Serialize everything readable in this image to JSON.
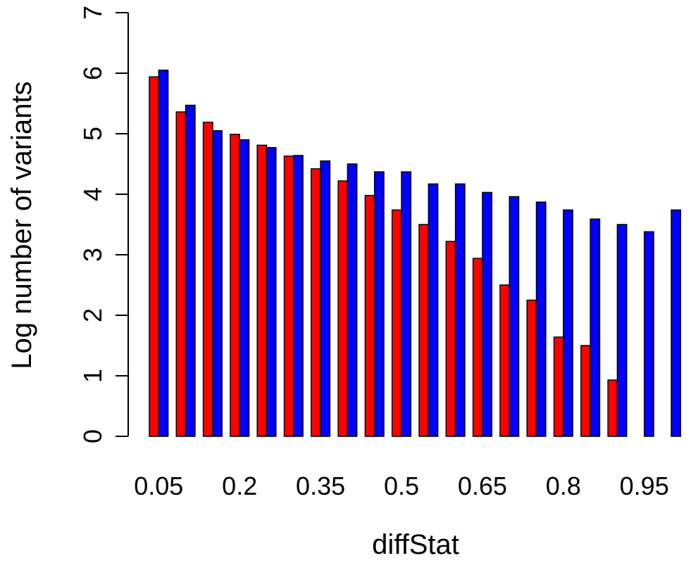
{
  "chart_data": {
    "type": "bar",
    "xlabel": "diffStat",
    "ylabel": "Log number of variants",
    "ylim": [
      0,
      7
    ],
    "yticks": [
      0,
      1,
      2,
      3,
      4,
      5,
      6,
      7
    ],
    "categories": [
      "0.05",
      "0.1",
      "0.15",
      "0.2",
      "0.25",
      "0.3",
      "0.35",
      "0.4",
      "0.45",
      "0.5",
      "0.55",
      "0.6",
      "0.65",
      "0.7",
      "0.75",
      "0.8",
      "0.85",
      "0.9",
      "0.95",
      "1"
    ],
    "xtick_labels": {
      "0": "0.05",
      "3": "0.2",
      "6": "0.35",
      "9": "0.5",
      "12": "0.65",
      "15": "0.8",
      "18": "0.95"
    },
    "grid": false,
    "legend": "none",
    "series": [
      {
        "color": "#ff0000",
        "values": [
          5.94,
          5.36,
          5.19,
          4.99,
          4.81,
          4.63,
          4.42,
          4.22,
          3.98,
          3.74,
          3.5,
          3.22,
          2.94,
          2.5,
          2.25,
          1.64,
          1.5,
          0.93,
          0.0,
          0.0
        ]
      },
      {
        "color": "#0000ff",
        "values": [
          6.05,
          5.47,
          5.05,
          4.9,
          4.77,
          4.64,
          4.55,
          4.5,
          4.37,
          4.37,
          4.17,
          4.17,
          4.03,
          3.96,
          3.87,
          3.74,
          3.59,
          3.5,
          3.38,
          3.74
        ]
      }
    ]
  }
}
